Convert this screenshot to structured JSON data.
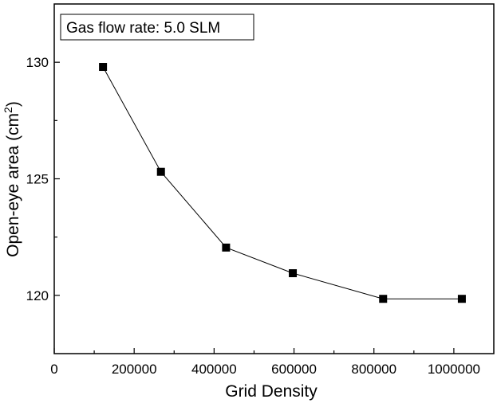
{
  "chart_data": {
    "type": "line",
    "title": "",
    "xlabel": "Grid Density",
    "ylabel_main": "Open-eye area (cm",
    "ylabel_sup": "2",
    "ylabel_end": ")",
    "annotation": "Gas flow rate: 5.0 SLM",
    "xlim": [
      0,
      1100000
    ],
    "ylim": [
      117.5,
      132.5
    ],
    "x_ticks": [
      0,
      200000,
      400000,
      600000,
      800000,
      1000000
    ],
    "x_tick_labels": [
      "0",
      "200000",
      "400000",
      "600000",
      "800000",
      "1000000"
    ],
    "y_ticks": [
      120,
      125,
      130
    ],
    "y_tick_labels": [
      "120",
      "125",
      "130"
    ],
    "grid": false,
    "marker": "square",
    "series": [
      {
        "x": [
          122000,
          267000,
          430000,
          597000,
          823000,
          1020000
        ],
        "values": [
          129.8,
          125.3,
          122.05,
          120.95,
          119.85,
          119.85
        ]
      }
    ],
    "colors": {
      "line": "#000000",
      "marker": "#000000",
      "axis": "#000000",
      "background": "#ffffff"
    }
  }
}
